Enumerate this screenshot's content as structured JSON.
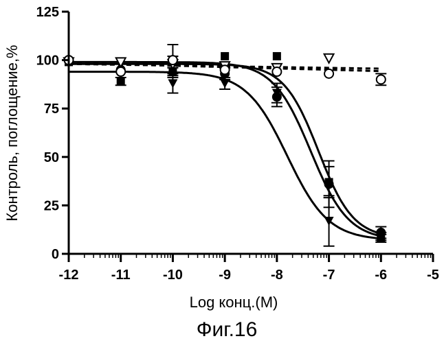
{
  "chart_data": {
    "type": "scatter",
    "title": "",
    "xlabel": "Log конц.(M)",
    "ylabel": "Контроль, поглощение,%",
    "caption": "Фиг.16",
    "xlim": [
      -12,
      -5
    ],
    "ylim": [
      0,
      125
    ],
    "x_scale": "linear",
    "x_ticks": [
      -12,
      -11,
      -10,
      -9,
      -8,
      -7,
      -6,
      -5
    ],
    "x_tick_labels": [
      "-12",
      "-11",
      "-10",
      "-9",
      "-8",
      "-7",
      "-6",
      "-5"
    ],
    "y_ticks": [
      0,
      25,
      50,
      75,
      100,
      125
    ],
    "y_tick_labels": [
      "0",
      "25",
      "50",
      "75",
      "100",
      "125"
    ],
    "grid": false,
    "legend": "none",
    "series": [
      {
        "marker": "filled-square",
        "line": "solid",
        "color": "#000000",
        "points": [
          {
            "x": -12,
            "y": 99,
            "err": 0
          },
          {
            "x": -11,
            "y": 89,
            "err": 2
          },
          {
            "x": -10,
            "y": 94,
            "err": 3
          },
          {
            "x": -9,
            "y": 102,
            "err": 0
          },
          {
            "x": -8,
            "y": 102,
            "err": 0
          },
          {
            "x": -7,
            "y": 37,
            "err": 8
          },
          {
            "x": -6,
            "y": 8,
            "err": 2
          }
        ],
        "fit": {
          "top": 98,
          "bottom": 8,
          "logEC50": -7.2,
          "hill": 1.3
        }
      },
      {
        "marker": "filled-circle",
        "line": "solid",
        "color": "#000000",
        "points": [
          {
            "x": -12,
            "y": 100,
            "err": 0
          },
          {
            "x": -11,
            "y": 95,
            "err": 0
          },
          {
            "x": -10,
            "y": 99,
            "err": 3
          },
          {
            "x": -9,
            "y": 93,
            "err": 3
          },
          {
            "x": -8,
            "y": 81,
            "err": 5
          },
          {
            "x": -7,
            "y": 36,
            "err": 12
          },
          {
            "x": -6,
            "y": 11,
            "err": 3
          }
        ],
        "fit": {
          "top": 99,
          "bottom": 7,
          "logEC50": -7.35,
          "hill": 1.2
        }
      },
      {
        "marker": "filled-triangle-down",
        "line": "solid",
        "color": "#000000",
        "points": [
          {
            "x": -12,
            "y": 99,
            "err": 0
          },
          {
            "x": -11,
            "y": 93,
            "err": 0
          },
          {
            "x": -10,
            "y": 88,
            "err": 5
          },
          {
            "x": -9,
            "y": 88,
            "err": 3
          },
          {
            "x": -8,
            "y": 83,
            "err": 5
          },
          {
            "x": -7,
            "y": 17,
            "err": 13
          },
          {
            "x": -6,
            "y": 9,
            "err": 2
          }
        ],
        "fit": {
          "top": 94,
          "bottom": 7,
          "logEC50": -7.8,
          "hill": 1.1
        }
      },
      {
        "marker": "open-circle",
        "line": "dashed",
        "color": "#000000",
        "points": [
          {
            "x": -12,
            "y": 100,
            "err": 0
          },
          {
            "x": -11,
            "y": 94,
            "err": 0
          },
          {
            "x": -10,
            "y": 100,
            "err": 8
          },
          {
            "x": -9,
            "y": 95,
            "err": 0
          },
          {
            "x": -8,
            "y": 94,
            "err": 0
          },
          {
            "x": -7,
            "y": 93,
            "err": 0
          },
          {
            "x": -6,
            "y": 90,
            "err": 3
          }
        ],
        "fit": {
          "y0": 98.5,
          "slope": 0.7
        }
      },
      {
        "marker": "open-triangle-down",
        "line": "dashed",
        "color": "#000000",
        "points": [
          {
            "x": -12,
            "y": 99,
            "err": 0
          },
          {
            "x": -11,
            "y": 99,
            "err": 0
          },
          {
            "x": -10,
            "y": 98,
            "err": 0
          },
          {
            "x": -9,
            "y": 97,
            "err": 0
          },
          {
            "x": -8,
            "y": 96,
            "err": 0
          },
          {
            "x": -7,
            "y": 101,
            "err": 0
          }
        ],
        "fit": {
          "y0": 98,
          "slope": 0.4
        }
      }
    ]
  }
}
